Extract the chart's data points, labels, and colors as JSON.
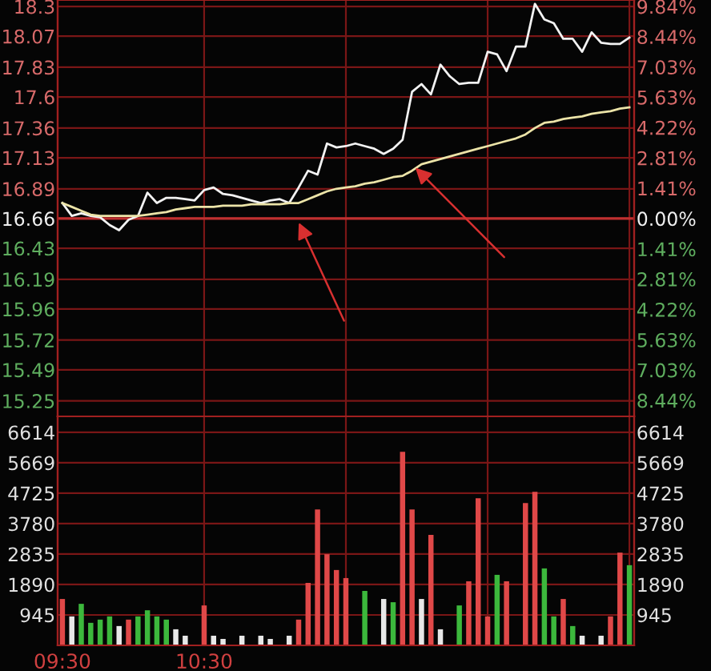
{
  "chart_data": [
    {
      "type": "line",
      "grid": true,
      "categories": [
        null,
        null,
        null,
        null,
        null,
        null,
        null,
        null,
        null,
        null,
        null,
        null,
        null,
        null,
        null,
        null,
        null,
        null,
        null,
        null,
        null,
        null,
        null,
        null,
        null,
        null,
        null,
        null,
        null,
        null,
        null,
        null,
        null,
        null,
        null,
        null,
        null,
        null,
        null,
        null,
        null,
        null,
        null,
        null,
        null,
        null,
        null,
        null,
        null,
        null,
        null,
        null,
        null,
        null,
        null,
        null,
        null,
        null,
        null,
        null,
        null
      ],
      "ylim": [
        15.13,
        18.35
      ],
      "yticks": [
        15.25,
        15.49,
        15.72,
        15.96,
        16.19,
        16.43,
        16.66,
        16.89,
        17.13,
        17.36,
        17.6,
        17.83,
        18.07,
        18.3
      ],
      "y2lim": [
        -9.18,
        10.14
      ],
      "y2ticks": [
        {
          "value": -8.44,
          "label": "8.44%"
        },
        {
          "value": -7.03,
          "label": "7.03%"
        },
        {
          "value": -5.63,
          "label": "5.63%"
        },
        {
          "value": -4.22,
          "label": "4.22%"
        },
        {
          "value": -2.81,
          "label": "2.81%"
        },
        {
          "value": -1.41,
          "label": "1.41%"
        },
        {
          "value": 0,
          "label": "0.00%"
        },
        {
          "value": 1.41,
          "label": "1.41%"
        },
        {
          "value": 2.81,
          "label": "2.81%"
        },
        {
          "value": 4.22,
          "label": "4.22%"
        },
        {
          "value": 5.63,
          "label": "5.63%"
        },
        {
          "value": 7.03,
          "label": "7.03%"
        },
        {
          "value": 8.44,
          "label": "8.44%"
        },
        {
          "value": 9.84,
          "label": "9.84%"
        }
      ],
      "ref_lines": [
        {
          "axis": "y",
          "value": 16.66,
          "color": "#c03030"
        }
      ],
      "series": [
        {
          "color": "#f2f2f2",
          "values": [
            16.78,
            16.68,
            16.7,
            16.68,
            16.67,
            16.61,
            16.57,
            16.65,
            16.68,
            16.86,
            16.78,
            16.82,
            16.82,
            16.81,
            16.8,
            16.88,
            16.9,
            16.85,
            16.84,
            16.82,
            16.8,
            16.78,
            16.8,
            16.81,
            16.78,
            16.9,
            17.03,
            17.0,
            17.24,
            17.21,
            17.22,
            17.24,
            17.22,
            17.2,
            17.16,
            17.2,
            17.27,
            17.64,
            17.7,
            17.62,
            17.85,
            17.76,
            17.7,
            17.71,
            17.71,
            17.95,
            17.93,
            17.8,
            17.99,
            17.99,
            18.32,
            18.2,
            18.17,
            18.05,
            18.05,
            17.95,
            18.1,
            18.02,
            18.01,
            18.01,
            18.06
          ]
        },
        {
          "color": "#ece4a8",
          "values": [
            16.78,
            16.75,
            16.72,
            16.69,
            16.68,
            16.68,
            16.68,
            16.68,
            16.68,
            16.69,
            16.7,
            16.71,
            16.73,
            16.74,
            16.75,
            16.75,
            16.75,
            16.76,
            16.76,
            16.76,
            16.77,
            16.77,
            16.77,
            16.77,
            16.78,
            16.78,
            16.81,
            16.84,
            16.87,
            16.89,
            16.9,
            16.91,
            16.93,
            16.94,
            16.96,
            16.98,
            16.99,
            17.03,
            17.08,
            17.1,
            17.12,
            17.14,
            17.16,
            17.18,
            17.2,
            17.22,
            17.24,
            17.26,
            17.28,
            17.31,
            17.36,
            17.4,
            17.41,
            17.43,
            17.44,
            17.45,
            17.47,
            17.48,
            17.49,
            17.51,
            17.52
          ]
        }
      ]
    },
    {
      "type": "bar",
      "grid": true,
      "categories": [
        "09:30",
        null,
        null,
        null,
        null,
        null,
        null,
        null,
        null,
        null,
        null,
        null,
        null,
        null,
        null,
        "10:30",
        null,
        null,
        null,
        null,
        null,
        null,
        null,
        null,
        null,
        null,
        null,
        null,
        null,
        null,
        null,
        null,
        null,
        null,
        null,
        null,
        null,
        null,
        null,
        null,
        null,
        null,
        null,
        null,
        null,
        null,
        null,
        null,
        null,
        null,
        null,
        null,
        null,
        null,
        null,
        null,
        null,
        null,
        null,
        null,
        null
      ],
      "ylim": [
        0,
        7110
      ],
      "yticks": [
        945,
        1890,
        2835,
        3780,
        4725,
        5669,
        6614
      ],
      "y2lim": [
        0,
        7110
      ],
      "y2ticks": [
        945,
        1890,
        2835,
        3780,
        4725,
        5669,
        6614
      ],
      "values": [
        1440,
        900,
        1290,
        700,
        800,
        900,
        600,
        800,
        900,
        1090,
        900,
        800,
        500,
        300,
        null,
        1240,
        300,
        200,
        null,
        300,
        null,
        300,
        200,
        null,
        300,
        800,
        1940,
        4220,
        2830,
        2340,
        2090,
        null,
        1690,
        null,
        1440,
        1340,
        6010,
        4220,
        1440,
        3430,
        500,
        null,
        1240,
        1990,
        4570,
        900,
        2190,
        1990,
        null,
        4420,
        4770,
        2390,
        900,
        1440,
        600,
        300,
        null,
        300,
        900,
        2880,
        2490
      ],
      "colors": [
        "#e04848",
        "#e8e8e8",
        "#3cb83c",
        "#3cb83c",
        "#3cb83c",
        "#3cb83c",
        "#e8e8e8",
        "#e04848",
        "#3cb83c",
        "#3cb83c",
        "#3cb83c",
        "#3cb83c",
        "#e8e8e8",
        "#e8e8e8",
        null,
        "#e04848",
        "#e8e8e8",
        "#e8e8e8",
        null,
        "#e8e8e8",
        null,
        "#e8e8e8",
        "#e8e8e8",
        null,
        "#e8e8e8",
        "#e04848",
        "#e04848",
        "#e04848",
        "#e04848",
        "#e04848",
        "#e04848",
        null,
        "#3cb83c",
        null,
        "#e8e8e8",
        "#3cb83c",
        "#e04848",
        "#e04848",
        "#e8e8e8",
        "#e04848",
        "#e8e8e8",
        null,
        "#3cb83c",
        "#e04848",
        "#e04848",
        "#e04848",
        "#3cb83c",
        "#e04848",
        null,
        "#e04848",
        "#e04848",
        "#3cb83c",
        "#3cb83c",
        "#e04848",
        "#3cb83c",
        "#e8e8e8",
        null,
        "#e8e8e8",
        "#e04848",
        "#e04848",
        "#3cb83c"
      ]
    }
  ]
}
